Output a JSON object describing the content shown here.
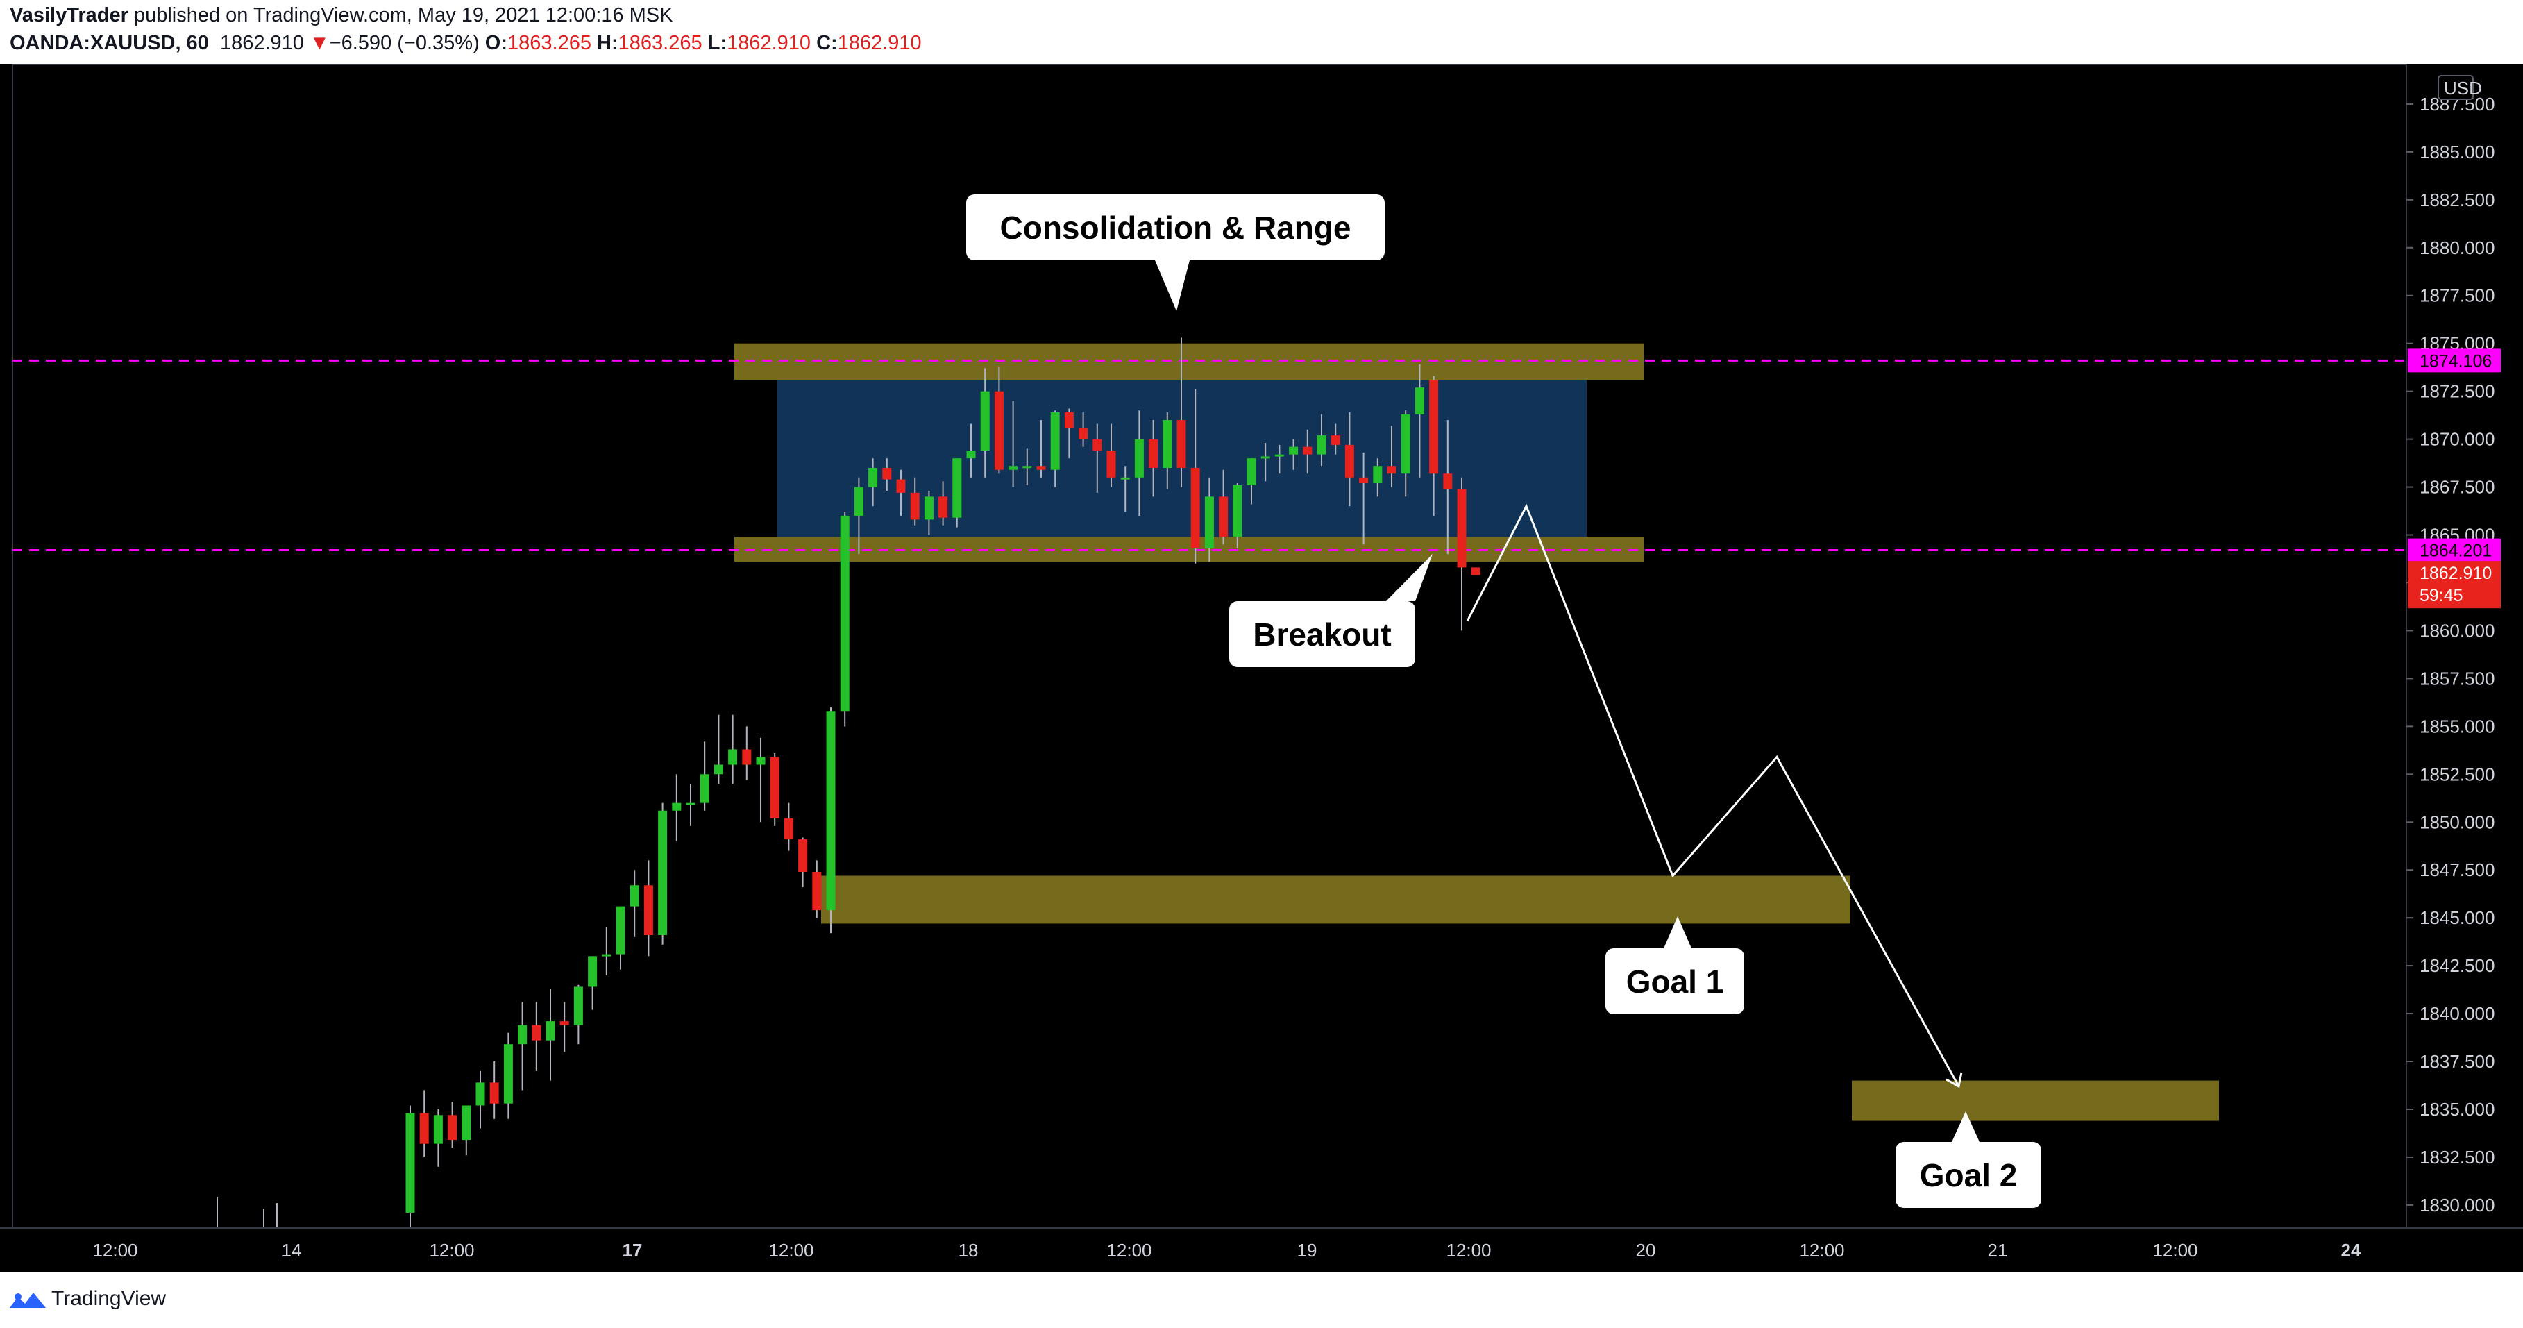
{
  "header": {
    "author": "VasilyTrader",
    "published": "published on TradingView.com, May 19, 2021 12:00:16 MSK",
    "symbol": "OANDA:XAUUSD, 60",
    "last_price": "1862.910",
    "change_arrow": "▼",
    "change": "−6.590 (−0.35%)",
    "o_label": "O:",
    "o_value": "1863.265",
    "h_label": "H:",
    "h_value": "1863.265",
    "l_label": "L:",
    "l_value": "1862.910",
    "c_label": "C:",
    "c_value": "1862.910"
  },
  "footer": {
    "brand": "TradingView"
  },
  "colors": {
    "background": "#000000",
    "bull": "#26c22b",
    "bear": "#e8221d",
    "range_box": "#103357",
    "zone": "#766b1c",
    "level_line": "#ff00ff",
    "axis_text": "#d1d4dc"
  },
  "chart_data": {
    "type": "candlestick",
    "currency": "USD",
    "x_tick_labels": [
      "12:00",
      "14",
      "12:00",
      "17",
      "12:00",
      "18",
      "12:00",
      "19",
      "12:00",
      "20",
      "12:00",
      "21",
      "12:00",
      "24"
    ],
    "y_ticks": [
      1830,
      1832.5,
      1835,
      1837.5,
      1840,
      1842.5,
      1845,
      1847.5,
      1850,
      1852.5,
      1855,
      1857.5,
      1860,
      1862.5,
      1865,
      1867.5,
      1870,
      1872.5,
      1875,
      1877.5,
      1880,
      1882.5,
      1885,
      1887.5
    ],
    "ylim": [
      1828.8,
      1889.6
    ],
    "levels": [
      {
        "price": 1874.106,
        "label": "1874.106"
      },
      {
        "price": 1864.201,
        "label": "1864.201"
      }
    ],
    "last_price_tag": {
      "price": 1862.91,
      "label": "1862.910",
      "countdown": "59:45"
    },
    "annotations": [
      {
        "text": "Consolidation & Range"
      },
      {
        "text": "Breakout"
      },
      {
        "text": "Goal 1"
      },
      {
        "text": "Goal 2"
      }
    ],
    "zones": [
      {
        "name": "range-top",
        "top": 1875.0,
        "bottom": 1873.1
      },
      {
        "name": "range-bottom",
        "top": 1864.9,
        "bottom": 1863.6
      },
      {
        "name": "goal-1",
        "top": 1847.2,
        "bottom": 1844.7
      },
      {
        "name": "goal-2",
        "top": 1836.5,
        "bottom": 1834.4
      }
    ],
    "range_box": {
      "top": 1873.1,
      "bottom": 1864.9
    },
    "projection_path": [
      1860.5,
      1866.5,
      1847.2,
      1853.4,
      1836.2
    ],
    "candles": [
      [
        1829.6,
        1835.2,
        1828.8,
        1834.8
      ],
      [
        1834.8,
        1836.0,
        1832.5,
        1833.2
      ],
      [
        1833.2,
        1835.0,
        1832.0,
        1834.7
      ],
      [
        1834.7,
        1835.4,
        1833.0,
        1833.4
      ],
      [
        1833.4,
        1835.2,
        1832.6,
        1835.2
      ],
      [
        1835.2,
        1837.0,
        1834.0,
        1836.4
      ],
      [
        1836.4,
        1837.5,
        1834.5,
        1835.3
      ],
      [
        1835.3,
        1839.0,
        1834.5,
        1838.4
      ],
      [
        1838.4,
        1840.6,
        1836.0,
        1839.4
      ],
      [
        1839.4,
        1840.6,
        1837.0,
        1838.6
      ],
      [
        1838.6,
        1841.3,
        1836.5,
        1839.6
      ],
      [
        1839.6,
        1840.6,
        1838.0,
        1839.4
      ],
      [
        1839.4,
        1841.5,
        1838.4,
        1841.4
      ],
      [
        1841.4,
        1843.0,
        1840.2,
        1843.0
      ],
      [
        1843.0,
        1844.5,
        1842.0,
        1843.1
      ],
      [
        1843.1,
        1845.6,
        1842.3,
        1845.6
      ],
      [
        1845.6,
        1847.5,
        1844.0,
        1846.7
      ],
      [
        1846.7,
        1848.0,
        1843.0,
        1844.1
      ],
      [
        1844.1,
        1851.0,
        1843.6,
        1850.6
      ],
      [
        1850.6,
        1852.5,
        1849.0,
        1851.0
      ],
      [
        1851.0,
        1852.0,
        1849.8,
        1851.0
      ],
      [
        1851.0,
        1854.2,
        1850.6,
        1852.5
      ],
      [
        1852.5,
        1855.6,
        1852.0,
        1853.0
      ],
      [
        1853.0,
        1855.6,
        1852.0,
        1853.8
      ],
      [
        1853.8,
        1855.0,
        1852.2,
        1853.0
      ],
      [
        1853.0,
        1854.4,
        1850.0,
        1853.4
      ],
      [
        1853.4,
        1853.6,
        1849.8,
        1850.2
      ],
      [
        1850.2,
        1851.0,
        1848.5,
        1849.1
      ],
      [
        1849.1,
        1849.2,
        1846.6,
        1847.4
      ],
      [
        1847.4,
        1848.0,
        1845.0,
        1845.4
      ],
      [
        1845.4,
        1856.0,
        1844.2,
        1855.8
      ],
      [
        1855.8,
        1866.2,
        1855.0,
        1866.0
      ],
      [
        1866.0,
        1868.0,
        1864.0,
        1867.5
      ],
      [
        1867.5,
        1869.0,
        1866.5,
        1868.5
      ],
      [
        1868.5,
        1869.0,
        1867.3,
        1867.9
      ],
      [
        1867.9,
        1868.4,
        1866.0,
        1867.2
      ],
      [
        1867.2,
        1868.0,
        1865.5,
        1865.8
      ],
      [
        1865.8,
        1867.3,
        1865.0,
        1867.0
      ],
      [
        1867.0,
        1867.8,
        1865.5,
        1865.9
      ],
      [
        1865.9,
        1869.0,
        1865.4,
        1869.0
      ],
      [
        1869.0,
        1870.8,
        1868.0,
        1869.4
      ],
      [
        1869.4,
        1873.7,
        1868.0,
        1872.5
      ],
      [
        1872.5,
        1873.8,
        1868.2,
        1868.4
      ],
      [
        1868.4,
        1872.0,
        1867.5,
        1868.6
      ],
      [
        1868.6,
        1869.5,
        1867.6,
        1868.6
      ],
      [
        1868.6,
        1871.0,
        1868.0,
        1868.4
      ],
      [
        1868.4,
        1871.5,
        1867.5,
        1871.4
      ],
      [
        1871.4,
        1871.6,
        1869.0,
        1870.6
      ],
      [
        1870.6,
        1871.4,
        1869.6,
        1870.0
      ],
      [
        1870.0,
        1870.8,
        1867.2,
        1869.4
      ],
      [
        1869.4,
        1870.8,
        1867.5,
        1868.0
      ],
      [
        1868.0,
        1868.6,
        1866.2,
        1868.0
      ],
      [
        1868.0,
        1871.5,
        1866.0,
        1870.0
      ],
      [
        1870.0,
        1871.0,
        1867.0,
        1868.5
      ],
      [
        1868.5,
        1871.4,
        1867.4,
        1871.0
      ],
      [
        1871.0,
        1875.3,
        1867.5,
        1868.5
      ],
      [
        1868.5,
        1872.6,
        1863.5,
        1864.3
      ],
      [
        1864.3,
        1868.0,
        1863.6,
        1867.0
      ],
      [
        1867.0,
        1868.4,
        1864.5,
        1864.9
      ],
      [
        1864.9,
        1867.7,
        1864.3,
        1867.6
      ],
      [
        1867.6,
        1869.0,
        1866.6,
        1869.0
      ],
      [
        1869.0,
        1869.8,
        1867.8,
        1869.1
      ],
      [
        1869.1,
        1869.7,
        1868.2,
        1869.2
      ],
      [
        1869.2,
        1870.0,
        1868.4,
        1869.6
      ],
      [
        1869.6,
        1870.5,
        1868.2,
        1869.2
      ],
      [
        1869.2,
        1871.3,
        1868.6,
        1870.2
      ],
      [
        1870.2,
        1870.8,
        1869.2,
        1869.7
      ],
      [
        1869.7,
        1871.4,
        1866.5,
        1868.0
      ],
      [
        1868.0,
        1869.3,
        1864.5,
        1867.7
      ],
      [
        1867.7,
        1869.0,
        1867.0,
        1868.6
      ],
      [
        1868.6,
        1870.7,
        1867.5,
        1868.2
      ],
      [
        1868.2,
        1871.5,
        1867.0,
        1871.3
      ],
      [
        1871.3,
        1873.9,
        1868.0,
        1872.7
      ],
      [
        1873.1,
        1873.3,
        1866.0,
        1868.2
      ],
      [
        1868.2,
        1871.0,
        1864.0,
        1867.4
      ],
      [
        1867.4,
        1868.0,
        1860.0,
        1863.3
      ],
      [
        1863.3,
        1863.3,
        1862.9,
        1862.9
      ]
    ]
  }
}
